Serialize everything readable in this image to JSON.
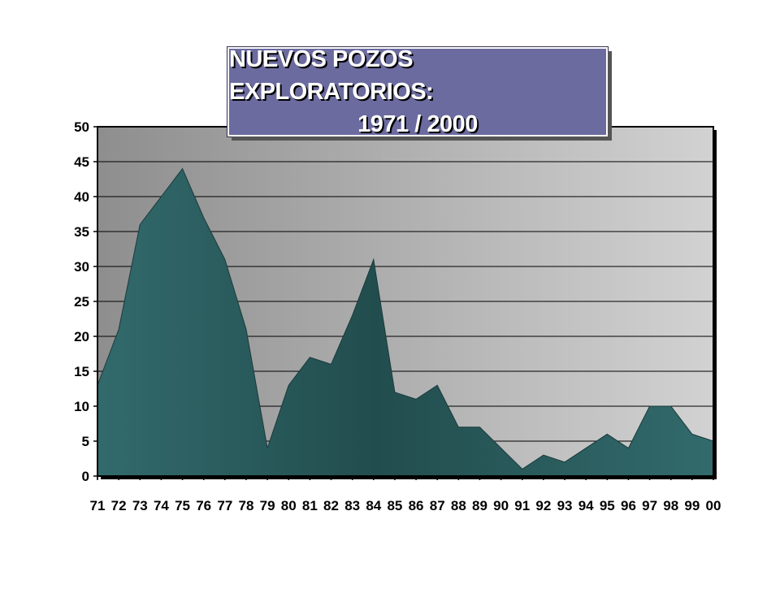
{
  "title": {
    "line1": "NUEVOS POZOS EXPLORATORIOS:",
    "line2": "1971 / 2000"
  },
  "colors": {
    "area_fill": "#2f6365",
    "area_fill_dark": "#1f4748",
    "plot_bg_left": "#8e8e8e",
    "plot_bg_right": "#d2d2d2",
    "title_bg": "#6b6b9f"
  },
  "chart_data": {
    "type": "area",
    "title": "NUEVOS POZOS EXPLORATORIOS: 1971 / 2000",
    "xlabel": "",
    "ylabel": "",
    "categories": [
      "71",
      "72",
      "73",
      "74",
      "75",
      "76",
      "77",
      "78",
      "79",
      "80",
      "81",
      "82",
      "83",
      "84",
      "85",
      "86",
      "87",
      "88",
      "89",
      "90",
      "91",
      "92",
      "93",
      "94",
      "95",
      "96",
      "97",
      "98",
      "99",
      "00"
    ],
    "values": [
      13,
      21,
      36,
      40,
      44,
      37,
      31,
      21,
      4,
      13,
      17,
      16,
      23,
      31,
      12,
      11,
      13,
      7,
      7,
      4,
      1,
      3,
      2,
      4,
      6,
      4,
      10,
      10,
      6,
      5
    ],
    "ylim": [
      0,
      50
    ],
    "yticks": [
      0,
      5,
      10,
      15,
      20,
      25,
      30,
      35,
      40,
      45,
      50
    ],
    "grid": true,
    "legend": "none"
  }
}
